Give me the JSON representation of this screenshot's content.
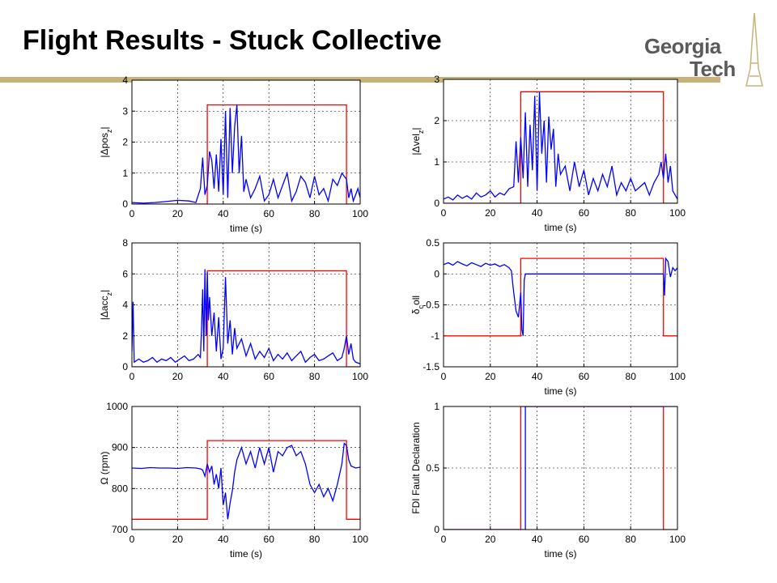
{
  "slide": {
    "title": "Flight Results - Stuck Collective",
    "logo_line1": "Georgia",
    "logo_line2": "Tech"
  },
  "colors": {
    "fault": "#ff0000",
    "signal": "#0000ff",
    "rule": "#c7b37a"
  },
  "chart_data": [
    {
      "type": "line",
      "xlabel": "time (s)",
      "ylabel": "|Δpos_z|",
      "xlim": [
        0,
        100
      ],
      "ylim": [
        0,
        4
      ],
      "xticks": [
        "0",
        "20",
        "40",
        "60",
        "80",
        "100"
      ],
      "yticks": [
        "0",
        "1",
        "2",
        "3",
        "4"
      ],
      "grid": true,
      "series": [
        {
          "color": "#ff0000",
          "x": [
            0,
            33,
            33,
            94,
            94,
            100
          ],
          "y": [
            0,
            0,
            3.2,
            3.2,
            0,
            0
          ]
        },
        {
          "color": "#0000ff",
          "x": [
            0,
            5,
            10,
            15,
            20,
            25,
            28,
            30,
            31,
            32,
            33,
            34,
            35,
            36,
            37,
            38,
            39,
            40,
            41,
            42,
            43,
            44,
            45,
            46,
            47,
            48,
            49,
            50,
            52,
            54,
            56,
            58,
            60,
            62,
            64,
            66,
            68,
            70,
            72,
            74,
            76,
            78,
            80,
            82,
            84,
            86,
            88,
            90,
            92,
            94,
            95,
            96,
            97,
            98,
            99,
            100
          ],
          "y": [
            0.05,
            0.03,
            0.05,
            0.08,
            0.12,
            0.1,
            0.05,
            0.5,
            1.5,
            0.3,
            0.6,
            1.7,
            1.4,
            0.5,
            1.6,
            0.4,
            2.1,
            0.3,
            3.0,
            0.2,
            3.1,
            1.0,
            2.5,
            3.2,
            1.0,
            2.2,
            0.4,
            0.8,
            0.2,
            0.5,
            0.9,
            0.1,
            0.3,
            0.8,
            0.2,
            0.6,
            1.0,
            0.1,
            0.4,
            0.9,
            0.7,
            0.2,
            0.9,
            0.3,
            0.5,
            0.1,
            0.8,
            0.6,
            1.0,
            0.8,
            0.2,
            0.5,
            0.1,
            0.3,
            0.5,
            0.2
          ]
        }
      ]
    },
    {
      "type": "line",
      "xlabel": "time (s)",
      "ylabel": "|Δvel_z|",
      "xlim": [
        0,
        100
      ],
      "ylim": [
        0,
        3
      ],
      "xticks": [
        "0",
        "20",
        "40",
        "60",
        "80",
        "100"
      ],
      "yticks": [
        "0",
        "1",
        "2",
        "3"
      ],
      "grid": true,
      "series": [
        {
          "color": "#ff0000",
          "x": [
            0,
            33,
            33,
            94,
            94,
            100
          ],
          "y": [
            0,
            0,
            2.7,
            2.7,
            0,
            0
          ]
        },
        {
          "color": "#0000ff",
          "x": [
            0,
            2,
            4,
            6,
            8,
            10,
            12,
            14,
            16,
            18,
            20,
            22,
            24,
            26,
            28,
            30,
            31,
            32,
            33,
            34,
            35,
            36,
            37,
            38,
            39,
            40,
            41,
            42,
            43,
            44,
            45,
            46,
            47,
            48,
            49,
            50,
            52,
            54,
            56,
            58,
            60,
            62,
            64,
            66,
            68,
            70,
            72,
            74,
            76,
            78,
            80,
            82,
            84,
            86,
            88,
            90,
            92,
            93,
            94,
            95,
            96,
            97,
            98,
            99,
            100
          ],
          "y": [
            0.1,
            0.15,
            0.08,
            0.2,
            0.12,
            0.18,
            0.1,
            0.25,
            0.15,
            0.2,
            0.3,
            0.15,
            0.25,
            0.2,
            0.35,
            0.4,
            1.5,
            0.5,
            1.6,
            0.6,
            2.2,
            0.4,
            1.9,
            0.8,
            2.6,
            0.3,
            2.7,
            1.2,
            2.0,
            0.5,
            2.1,
            1.3,
            1.8,
            0.4,
            1.2,
            0.7,
            0.9,
            0.3,
            1.0,
            0.4,
            0.8,
            0.2,
            0.6,
            0.3,
            0.7,
            0.4,
            0.9,
            0.2,
            0.5,
            0.3,
            0.6,
            0.3,
            0.4,
            0.5,
            0.2,
            0.5,
            0.7,
            1.0,
            0.6,
            1.2,
            0.5,
            0.9,
            0.3,
            0.2,
            0.1
          ]
        }
      ]
    },
    {
      "type": "line",
      "xlabel": "",
      "ylabel": "|Δacc_z|",
      "xlim": [
        0,
        100
      ],
      "ylim": [
        0,
        8
      ],
      "xticks": [
        "0",
        "20",
        "40",
        "60",
        "80",
        "100"
      ],
      "yticks": [
        "0",
        "2",
        "4",
        "6",
        "8"
      ],
      "grid": true,
      "series": [
        {
          "color": "#ff0000",
          "x": [
            0,
            33,
            33,
            94,
            94,
            100
          ],
          "y": [
            0,
            0,
            6.2,
            6.2,
            0,
            0
          ]
        },
        {
          "color": "#0000ff",
          "x": [
            0,
            0.5,
            1,
            3,
            5,
            7,
            9,
            11,
            13,
            15,
            17,
            19,
            21,
            23,
            25,
            27,
            29,
            30,
            30.5,
            31,
            31.5,
            32,
            32.5,
            33,
            33.5,
            34,
            35,
            36,
            37,
            38,
            39,
            40,
            41,
            42,
            43,
            44,
            45,
            46,
            48,
            50,
            52,
            54,
            56,
            58,
            60,
            62,
            64,
            66,
            68,
            70,
            72,
            74,
            76,
            78,
            80,
            82,
            84,
            86,
            88,
            90,
            92,
            93,
            94,
            95,
            96,
            97,
            98,
            100
          ],
          "y": [
            1,
            4.2,
            0.3,
            0.5,
            0.3,
            0.4,
            0.6,
            0.3,
            0.5,
            0.4,
            0.6,
            0.3,
            0.5,
            0.7,
            0.4,
            0.5,
            0.8,
            0.6,
            2.5,
            5.0,
            1.0,
            6.3,
            2.0,
            6.1,
            3.0,
            4.5,
            2.0,
            3.5,
            1.0,
            3.2,
            0.5,
            1.2,
            5.8,
            1.5,
            3.0,
            0.8,
            2.5,
            1.2,
            1.8,
            0.7,
            1.5,
            0.5,
            1.0,
            0.6,
            1.2,
            0.4,
            0.8,
            0.5,
            0.9,
            0.4,
            0.7,
            1.0,
            0.3,
            0.6,
            0.8,
            0.4,
            0.5,
            0.7,
            0.9,
            0.4,
            0.6,
            1.2,
            2.0,
            0.8,
            1.5,
            0.5,
            0.3,
            0.2
          ]
        }
      ]
    },
    {
      "type": "line",
      "xlabel": "time (s)",
      "ylabel": "δ_coll",
      "xlim": [
        0,
        100
      ],
      "ylim": [
        -1.5,
        0.5
      ],
      "xticks": [
        "0",
        "20",
        "40",
        "60",
        "80",
        "100"
      ],
      "yticks": [
        "-1.5",
        "-1",
        "-0.5",
        "0",
        "0.5"
      ],
      "grid": true,
      "series": [
        {
          "color": "#ff0000",
          "x": [
            0,
            33,
            33,
            94,
            94,
            100
          ],
          "y": [
            -1,
            -1,
            0.25,
            0.25,
            -1,
            -1
          ]
        },
        {
          "color": "#0000ff",
          "x": [
            0,
            2,
            4,
            6,
            8,
            10,
            12,
            14,
            16,
            18,
            20,
            22,
            24,
            26,
            28,
            29,
            30,
            31,
            32,
            33,
            33.5,
            34,
            34.5,
            35,
            94,
            94.5,
            95,
            96,
            97,
            98,
            99,
            100
          ],
          "y": [
            0.15,
            0.18,
            0.14,
            0.2,
            0.16,
            0.13,
            0.18,
            0.15,
            0.12,
            0.17,
            0.14,
            0.16,
            0.12,
            0.15,
            0.1,
            0.05,
            -0.3,
            -0.6,
            -0.7,
            -0.3,
            -0.9,
            -1.0,
            -0.1,
            0,
            0,
            -0.35,
            0.25,
            0.2,
            -0.05,
            0.1,
            0.05,
            0.1
          ]
        }
      ]
    },
    {
      "type": "line",
      "xlabel": "time (s)",
      "ylabel": "Ω (rpm)",
      "xlim": [
        0,
        100
      ],
      "ylim": [
        700,
        1000
      ],
      "xticks": [
        "0",
        "20",
        "40",
        "60",
        "80",
        "100"
      ],
      "yticks": [
        "700",
        "800",
        "900",
        "1000"
      ],
      "grid": true,
      "series": [
        {
          "color": "#ff0000",
          "x": [
            0,
            33,
            33,
            94,
            94,
            100
          ],
          "y": [
            725,
            725,
            917,
            917,
            725,
            725
          ]
        },
        {
          "color": "#0000ff",
          "x": [
            0,
            4,
            8,
            12,
            16,
            20,
            24,
            28,
            30,
            31,
            32,
            33,
            34,
            35,
            36,
            37,
            38,
            39,
            40,
            41,
            42,
            43,
            44,
            45,
            46,
            48,
            50,
            52,
            54,
            56,
            58,
            60,
            62,
            64,
            66,
            68,
            70,
            72,
            74,
            76,
            78,
            80,
            82,
            84,
            86,
            88,
            90,
            92,
            93,
            94,
            95,
            96,
            98,
            100
          ],
          "y": [
            850,
            849,
            851,
            850,
            850,
            849,
            851,
            850,
            848,
            845,
            830,
            860,
            840,
            855,
            810,
            835,
            800,
            850,
            760,
            790,
            725,
            765,
            795,
            840,
            870,
            900,
            860,
            890,
            850,
            900,
            860,
            900,
            840,
            890,
            880,
            900,
            905,
            880,
            890,
            860,
            810,
            790,
            810,
            780,
            800,
            770,
            810,
            860,
            910,
            905,
            870,
            855,
            850,
            852
          ]
        }
      ]
    },
    {
      "type": "line",
      "xlabel": "time (s)",
      "ylabel": "FDI Fault Declaration",
      "xlim": [
        0,
        100
      ],
      "ylim": [
        0,
        1
      ],
      "xticks": [
        "0",
        "20",
        "40",
        "60",
        "80",
        "100"
      ],
      "yticks": [
        "0",
        "0.5",
        "1"
      ],
      "grid": true,
      "series": [
        {
          "color": "#ff0000",
          "x": [
            0,
            33,
            33,
            94,
            94,
            100
          ],
          "y": [
            0,
            0,
            1,
            1,
            0,
            0
          ]
        },
        {
          "color": "#0000ff",
          "x": [
            0,
            35,
            35,
            100
          ],
          "y": [
            0,
            0,
            1,
            1
          ]
        }
      ]
    }
  ]
}
